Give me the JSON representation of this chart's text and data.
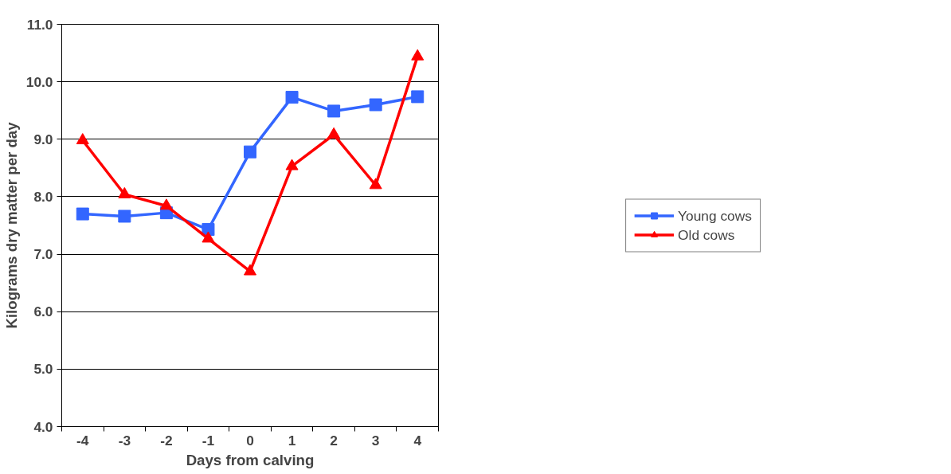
{
  "chart_data": {
    "type": "line",
    "xlabel": "Days from calving",
    "ylabel": "Kilograms dry matter per day",
    "categories": [
      "-4",
      "-3",
      "-2",
      "-1",
      "0",
      "1",
      "2",
      "3",
      "4"
    ],
    "series": [
      {
        "name": "Young cows",
        "color": "#3366ff",
        "marker": "square",
        "values": [
          7.7,
          7.66,
          7.72,
          7.43,
          8.78,
          9.73,
          9.49,
          9.6,
          9.74
        ]
      },
      {
        "name": "Old cows",
        "color": "#ff0000",
        "marker": "triangle",
        "values": [
          8.98,
          8.04,
          7.84,
          7.27,
          6.7,
          8.53,
          9.08,
          8.2,
          10.44
        ]
      }
    ],
    "ylim": [
      4.0,
      11.0
    ],
    "yticks": [
      {
        "value": 4,
        "label": "4.0"
      },
      {
        "value": 5,
        "label": "5.0"
      },
      {
        "value": 6,
        "label": "6.0"
      },
      {
        "value": 7,
        "label": "7.0"
      },
      {
        "value": 8,
        "label": "8.0"
      },
      {
        "value": 9,
        "label": "9.0"
      },
      {
        "value": 10,
        "label": "10.0"
      },
      {
        "value": 11,
        "label": "11.0"
      }
    ],
    "grid": "y",
    "legend": "right",
    "line_style": "solid"
  }
}
